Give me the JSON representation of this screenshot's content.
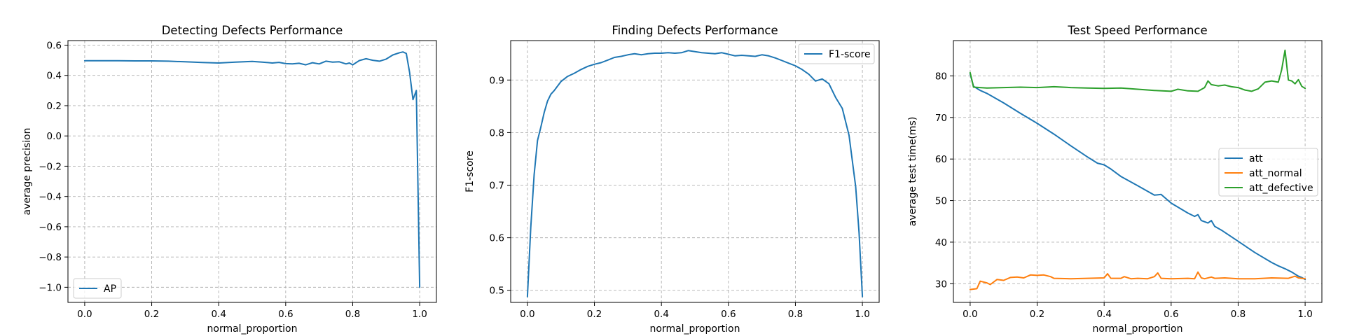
{
  "chart_data": [
    {
      "type": "line",
      "title": "Detecting Defects Performance",
      "xlabel": "normal_proportion",
      "ylabel": "average precision",
      "xlim": [
        -0.05,
        1.05
      ],
      "ylim": [
        -1.1,
        0.63
      ],
      "xticks": [
        0.0,
        0.2,
        0.4,
        0.6,
        0.8,
        1.0
      ],
      "xtick_labels": [
        "0.0",
        "0.2",
        "0.4",
        "0.6",
        "0.8",
        "1.0"
      ],
      "yticks": [
        -1.0,
        -0.8,
        -0.6,
        -0.4,
        -0.2,
        0.0,
        0.2,
        0.4,
        0.6
      ],
      "ytick_labels": [
        "−1.0",
        "−0.8",
        "−0.6",
        "−0.4",
        "−0.2",
        "0.0",
        "0.2",
        "0.4",
        "0.6"
      ],
      "grid": true,
      "legend_position": "lower-left",
      "series": [
        {
          "name": "AP",
          "color": "#1f77b4",
          "points": [
            [
              0.0,
              0.497
            ],
            [
              0.05,
              0.497
            ],
            [
              0.1,
              0.497
            ],
            [
              0.15,
              0.496
            ],
            [
              0.2,
              0.496
            ],
            [
              0.25,
              0.494
            ],
            [
              0.3,
              0.49
            ],
            [
              0.35,
              0.485
            ],
            [
              0.4,
              0.482
            ],
            [
              0.45,
              0.488
            ],
            [
              0.5,
              0.492
            ],
            [
              0.53,
              0.488
            ],
            [
              0.56,
              0.482
            ],
            [
              0.58,
              0.486
            ],
            [
              0.6,
              0.478
            ],
            [
              0.62,
              0.476
            ],
            [
              0.64,
              0.48
            ],
            [
              0.66,
              0.47
            ],
            [
              0.68,
              0.484
            ],
            [
              0.7,
              0.476
            ],
            [
              0.72,
              0.494
            ],
            [
              0.74,
              0.488
            ],
            [
              0.76,
              0.49
            ],
            [
              0.78,
              0.476
            ],
            [
              0.79,
              0.482
            ],
            [
              0.8,
              0.47
            ],
            [
              0.82,
              0.498
            ],
            [
              0.84,
              0.51
            ],
            [
              0.86,
              0.5
            ],
            [
              0.88,
              0.494
            ],
            [
              0.9,
              0.508
            ],
            [
              0.92,
              0.535
            ],
            [
              0.94,
              0.55
            ],
            [
              0.95,
              0.555
            ],
            [
              0.96,
              0.545
            ],
            [
              0.97,
              0.42
            ],
            [
              0.98,
              0.24
            ],
            [
              0.99,
              0.3
            ],
            [
              1.0,
              -1.0
            ]
          ]
        }
      ]
    },
    {
      "type": "line",
      "title": "Finding Defects Performance",
      "xlabel": "normal_proportion",
      "ylabel": "F1-score",
      "xlim": [
        -0.05,
        1.05
      ],
      "ylim": [
        0.477,
        0.975
      ],
      "xticks": [
        0.0,
        0.2,
        0.4,
        0.6,
        0.8,
        1.0
      ],
      "xtick_labels": [
        "0.0",
        "0.2",
        "0.4",
        "0.6",
        "0.8",
        "1.0"
      ],
      "yticks": [
        0.5,
        0.6,
        0.7,
        0.8,
        0.9
      ],
      "ytick_labels": [
        "0.5",
        "0.6",
        "0.7",
        "0.8",
        "0.9"
      ],
      "grid": true,
      "legend_position": "upper-right",
      "series": [
        {
          "name": "F1-score",
          "color": "#1f77b4",
          "points": [
            [
              0.0,
              0.488
            ],
            [
              0.01,
              0.62
            ],
            [
              0.02,
              0.72
            ],
            [
              0.03,
              0.785
            ],
            [
              0.04,
              0.81
            ],
            [
              0.05,
              0.838
            ],
            [
              0.06,
              0.86
            ],
            [
              0.07,
              0.873
            ],
            [
              0.08,
              0.88
            ],
            [
              0.1,
              0.897
            ],
            [
              0.12,
              0.907
            ],
            [
              0.14,
              0.913
            ],
            [
              0.16,
              0.92
            ],
            [
              0.18,
              0.926
            ],
            [
              0.2,
              0.93
            ],
            [
              0.22,
              0.933
            ],
            [
              0.24,
              0.938
            ],
            [
              0.26,
              0.943
            ],
            [
              0.28,
              0.945
            ],
            [
              0.3,
              0.948
            ],
            [
              0.32,
              0.95
            ],
            [
              0.34,
              0.948
            ],
            [
              0.36,
              0.95
            ],
            [
              0.38,
              0.951
            ],
            [
              0.4,
              0.951
            ],
            [
              0.42,
              0.952
            ],
            [
              0.44,
              0.951
            ],
            [
              0.46,
              0.952
            ],
            [
              0.48,
              0.956
            ],
            [
              0.5,
              0.954
            ],
            [
              0.52,
              0.952
            ],
            [
              0.54,
              0.951
            ],
            [
              0.56,
              0.95
            ],
            [
              0.58,
              0.952
            ],
            [
              0.6,
              0.949
            ],
            [
              0.62,
              0.946
            ],
            [
              0.64,
              0.947
            ],
            [
              0.66,
              0.946
            ],
            [
              0.68,
              0.945
            ],
            [
              0.7,
              0.948
            ],
            [
              0.72,
              0.946
            ],
            [
              0.74,
              0.942
            ],
            [
              0.76,
              0.937
            ],
            [
              0.78,
              0.932
            ],
            [
              0.8,
              0.927
            ],
            [
              0.82,
              0.92
            ],
            [
              0.84,
              0.911
            ],
            [
              0.86,
              0.898
            ],
            [
              0.88,
              0.902
            ],
            [
              0.9,
              0.893
            ],
            [
              0.92,
              0.867
            ],
            [
              0.94,
              0.846
            ],
            [
              0.96,
              0.795
            ],
            [
              0.98,
              0.697
            ],
            [
              0.99,
              0.61
            ],
            [
              1.0,
              0.488
            ]
          ]
        }
      ]
    },
    {
      "type": "line",
      "title": "Test Speed Performance",
      "xlabel": "normal_proportion",
      "ylabel": "average test time(ms)",
      "xlim": [
        -0.05,
        1.05
      ],
      "ylim": [
        25.5,
        88.5
      ],
      "xticks": [
        0.0,
        0.2,
        0.4,
        0.6,
        0.8,
        1.0
      ],
      "xtick_labels": [
        "0.0",
        "0.2",
        "0.4",
        "0.6",
        "0.8",
        "1.0"
      ],
      "yticks": [
        30,
        40,
        50,
        60,
        70,
        80
      ],
      "ytick_labels": [
        "30",
        "40",
        "50",
        "60",
        "70",
        "80"
      ],
      "grid": true,
      "legend_position": "center-right",
      "series": [
        {
          "name": "att",
          "color": "#1f77b4",
          "points": [
            [
              0.0,
              80.5
            ],
            [
              0.01,
              77.5
            ],
            [
              0.03,
              76.5
            ],
            [
              0.05,
              75.8
            ],
            [
              0.1,
              73.5
            ],
            [
              0.15,
              71.0
            ],
            [
              0.2,
              68.6
            ],
            [
              0.25,
              66.0
            ],
            [
              0.3,
              63.2
            ],
            [
              0.35,
              60.5
            ],
            [
              0.38,
              59.0
            ],
            [
              0.4,
              58.6
            ],
            [
              0.42,
              57.6
            ],
            [
              0.45,
              55.8
            ],
            [
              0.5,
              53.6
            ],
            [
              0.55,
              51.3
            ],
            [
              0.57,
              51.5
            ],
            [
              0.6,
              49.4
            ],
            [
              0.65,
              47.0
            ],
            [
              0.67,
              46.2
            ],
            [
              0.68,
              46.6
            ],
            [
              0.69,
              45.2
            ],
            [
              0.71,
              44.6
            ],
            [
              0.72,
              45.2
            ],
            [
              0.73,
              43.8
            ],
            [
              0.75,
              42.9
            ],
            [
              0.8,
              40.2
            ],
            [
              0.85,
              37.5
            ],
            [
              0.9,
              35.1
            ],
            [
              0.92,
              34.3
            ],
            [
              0.94,
              33.6
            ],
            [
              0.96,
              32.8
            ],
            [
              0.98,
              31.8
            ],
            [
              0.99,
              31.5
            ],
            [
              1.0,
              31.0
            ]
          ]
        },
        {
          "name": "att_normal",
          "color": "#ff7f0e",
          "points": [
            [
              0.0,
              28.6
            ],
            [
              0.02,
              28.8
            ],
            [
              0.03,
              30.6
            ],
            [
              0.05,
              30.2
            ],
            [
              0.06,
              29.8
            ],
            [
              0.08,
              31.0
            ],
            [
              0.1,
              30.8
            ],
            [
              0.12,
              31.5
            ],
            [
              0.14,
              31.6
            ],
            [
              0.16,
              31.4
            ],
            [
              0.18,
              32.1
            ],
            [
              0.2,
              32.0
            ],
            [
              0.22,
              32.1
            ],
            [
              0.24,
              31.7
            ],
            [
              0.25,
              31.3
            ],
            [
              0.3,
              31.2
            ],
            [
              0.35,
              31.3
            ],
            [
              0.4,
              31.4
            ],
            [
              0.41,
              32.4
            ],
            [
              0.42,
              31.3
            ],
            [
              0.45,
              31.3
            ],
            [
              0.46,
              31.7
            ],
            [
              0.48,
              31.2
            ],
            [
              0.5,
              31.3
            ],
            [
              0.53,
              31.2
            ],
            [
              0.55,
              31.7
            ],
            [
              0.56,
              32.6
            ],
            [
              0.57,
              31.3
            ],
            [
              0.6,
              31.2
            ],
            [
              0.65,
              31.3
            ],
            [
              0.67,
              31.2
            ],
            [
              0.68,
              32.8
            ],
            [
              0.69,
              31.4
            ],
            [
              0.7,
              31.2
            ],
            [
              0.72,
              31.6
            ],
            [
              0.73,
              31.3
            ],
            [
              0.76,
              31.4
            ],
            [
              0.8,
              31.2
            ],
            [
              0.85,
              31.2
            ],
            [
              0.9,
              31.4
            ],
            [
              0.95,
              31.3
            ],
            [
              0.97,
              31.8
            ],
            [
              0.98,
              31.4
            ],
            [
              1.0,
              31.2
            ]
          ]
        },
        {
          "name": "att_defective",
          "color": "#2ca02c",
          "points": [
            [
              0.0,
              80.8
            ],
            [
              0.01,
              77.3
            ],
            [
              0.05,
              77.1
            ],
            [
              0.1,
              77.2
            ],
            [
              0.15,
              77.3
            ],
            [
              0.2,
              77.2
            ],
            [
              0.25,
              77.4
            ],
            [
              0.3,
              77.2
            ],
            [
              0.35,
              77.1
            ],
            [
              0.4,
              77.0
            ],
            [
              0.45,
              77.1
            ],
            [
              0.5,
              76.8
            ],
            [
              0.55,
              76.5
            ],
            [
              0.6,
              76.3
            ],
            [
              0.62,
              76.8
            ],
            [
              0.65,
              76.4
            ],
            [
              0.68,
              76.3
            ],
            [
              0.7,
              77.2
            ],
            [
              0.71,
              78.8
            ],
            [
              0.72,
              77.9
            ],
            [
              0.74,
              77.6
            ],
            [
              0.76,
              77.8
            ],
            [
              0.78,
              77.4
            ],
            [
              0.8,
              77.2
            ],
            [
              0.82,
              76.6
            ],
            [
              0.84,
              76.3
            ],
            [
              0.86,
              76.9
            ],
            [
              0.88,
              78.5
            ],
            [
              0.9,
              78.8
            ],
            [
              0.92,
              78.5
            ],
            [
              0.93,
              81.5
            ],
            [
              0.94,
              86.2
            ],
            [
              0.95,
              79.0
            ],
            [
              0.96,
              78.8
            ],
            [
              0.97,
              78.1
            ],
            [
              0.98,
              79.1
            ],
            [
              0.99,
              77.5
            ],
            [
              1.0,
              77.0
            ]
          ]
        }
      ]
    }
  ]
}
